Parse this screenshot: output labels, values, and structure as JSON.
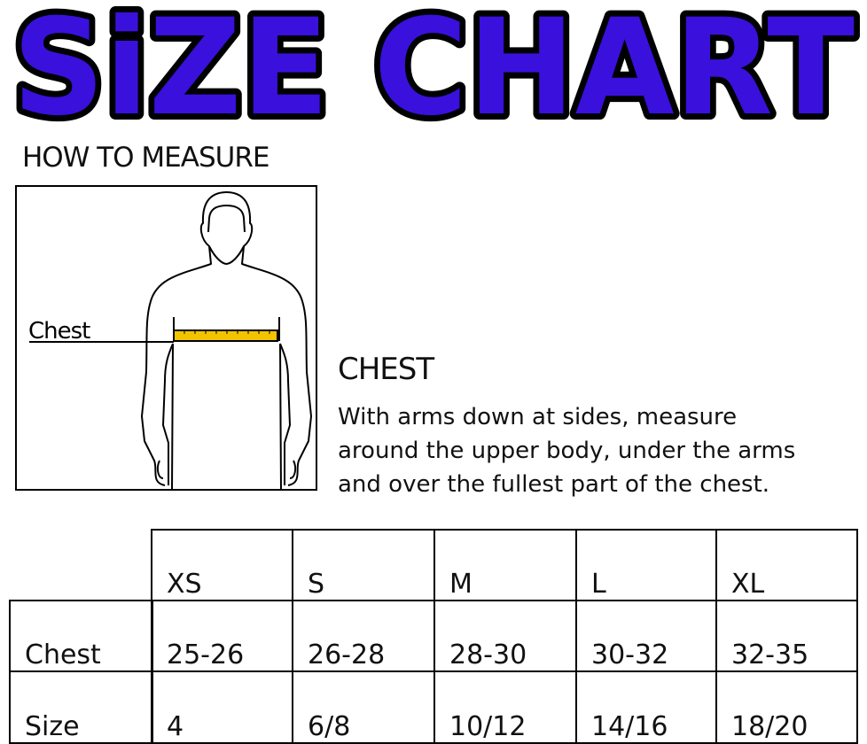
{
  "title": "SiZE CHART",
  "colors": {
    "title_fill": "#3a10dc",
    "tape": "#f2c400"
  },
  "how_to_measure": "HOW TO MEASURE",
  "figure": {
    "label": "Chest"
  },
  "chest": {
    "heading": "CHEST",
    "lines": [
      "With arms down at sides, measure",
      "around the upper body, under the arms",
      "and over the fullest part of the chest."
    ]
  },
  "table": {
    "sizes": [
      "XS",
      "S",
      "M",
      "L",
      "XL"
    ],
    "rows": [
      {
        "label": "Chest",
        "values": [
          "25-26",
          "26-28",
          "28-30",
          "30-32",
          "32-35"
        ]
      },
      {
        "label": "Size",
        "values": [
          "4",
          "6/8",
          "10/12",
          "14/16",
          "18/20"
        ]
      }
    ]
  }
}
